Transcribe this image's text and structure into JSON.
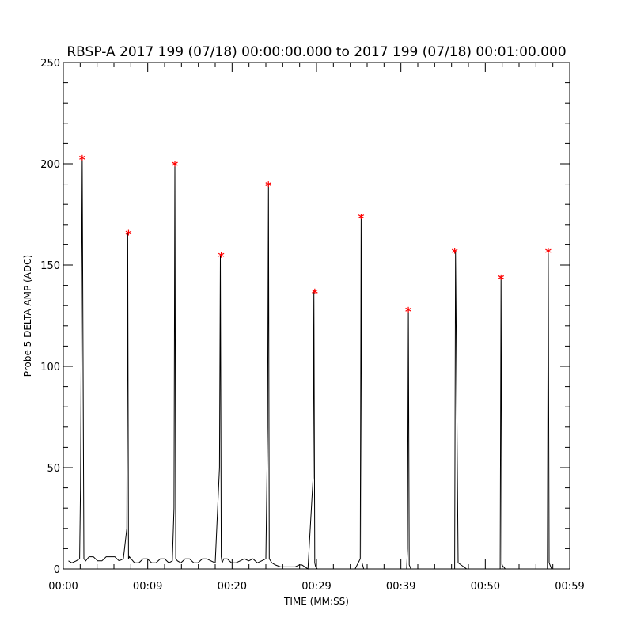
{
  "chart_data": {
    "type": "line",
    "title": "RBSP-A 2017 199 (07/18) 00:00:00.000 to 2017 199 (07/18) 00:01:00.000",
    "xlabel": "TIME (MM:SS)",
    "ylabel": "Probe 5 DELTA AMP (ADC)",
    "xlim": [
      0,
      59
    ],
    "ylim": [
      0,
      250
    ],
    "x_tick_labels": [
      "00:00",
      "00:09",
      "00:20",
      "00:29",
      "00:39",
      "00:50",
      "00:59"
    ],
    "y_tick_labels": [
      "0",
      "50",
      "100",
      "150",
      "200",
      "250"
    ],
    "y_ticks": [
      0,
      50,
      100,
      150,
      200,
      250
    ],
    "peak_marker_color": "#ff0000",
    "line_color": "#000000",
    "grid": false,
    "series": [
      {
        "marker": "asterisk",
        "x": [
          2.2,
          7.6,
          13.0,
          18.4,
          23.9,
          29.3,
          34.7,
          40.2,
          45.6,
          51.0,
          56.5
        ],
        "values": [
          203,
          166,
          200,
          155,
          190,
          137,
          174,
          128,
          157,
          144,
          157
        ]
      },
      {
        "x": [
          0.6,
          1.0,
          1.5,
          1.9,
          2.0,
          2.2,
          2.4,
          2.6,
          3.0,
          3.5,
          4.0,
          4.5,
          5.0,
          5.5,
          6.0,
          6.5,
          7.0,
          7.4,
          7.5,
          7.6,
          7.7,
          7.9,
          8.3,
          8.8,
          9.3,
          9.8,
          10.3,
          10.8,
          11.3,
          11.8,
          12.3,
          12.7,
          12.9,
          13.0,
          13.1,
          13.3,
          13.7,
          14.2,
          14.7,
          15.2,
          15.7,
          16.2,
          16.7,
          17.2,
          17.7,
          18.2,
          18.3,
          18.4,
          18.5,
          18.7,
          19.1,
          19.6,
          20.1,
          20.6,
          21.1,
          21.6,
          22.1,
          22.6,
          23.1,
          23.6,
          23.8,
          23.9,
          24.0,
          24.3,
          24.7,
          25.3,
          26.0,
          26.5,
          27.0,
          27.5,
          27.8,
          28.5,
          29.1,
          29.2,
          29.3,
          29.4,
          29.6,
          30.0,
          30.5,
          31.5,
          32.0,
          32.2,
          32.4,
          33.0,
          34.0,
          34.6,
          34.7,
          34.8,
          35.0,
          36.0,
          37.0,
          38.0,
          38.5,
          38.8,
          39.0,
          39.5,
          40.0,
          40.1,
          40.2,
          40.3,
          40.5,
          41.0,
          42.0,
          42.5,
          43.5,
          44.0,
          45.0,
          45.5,
          45.6,
          45.7,
          46.0,
          47.0,
          48.5,
          48.7,
          49.0,
          49.5,
          50.0,
          50.9,
          51.0,
          51.1,
          51.5,
          52.5,
          53.5,
          54.0,
          54.3,
          54.6,
          55.0,
          56.0,
          56.4,
          56.5,
          56.6,
          56.9
        ],
        "values": [
          4,
          3,
          4,
          5,
          40,
          203,
          5,
          4,
          6,
          6,
          4,
          4,
          6,
          6,
          6,
          4,
          5,
          20,
          166,
          5,
          6,
          5,
          3,
          3,
          5,
          5,
          3,
          3,
          5,
          5,
          3,
          4,
          30,
          200,
          5,
          4,
          3,
          5,
          5,
          3,
          3,
          5,
          5,
          4,
          3,
          50,
          155,
          6,
          3,
          5,
          5,
          3,
          3,
          4,
          5,
          4,
          5,
          3,
          4,
          5,
          70,
          190,
          5,
          3,
          2,
          1,
          1,
          1,
          1,
          2,
          2,
          0,
          45,
          137,
          3,
          1,
          0,
          0,
          0,
          0,
          0,
          0,
          0,
          0,
          0,
          5,
          174,
          3,
          0,
          0,
          0,
          0,
          0,
          0,
          0,
          0,
          0,
          10,
          128,
          2,
          0,
          0,
          0,
          0,
          0,
          0,
          0,
          0,
          0,
          157,
          3,
          0,
          0,
          0,
          0,
          0,
          0,
          0,
          144,
          2,
          0,
          0,
          0,
          0,
          0,
          0,
          0,
          0,
          0,
          157,
          3,
          0
        ]
      }
    ]
  }
}
